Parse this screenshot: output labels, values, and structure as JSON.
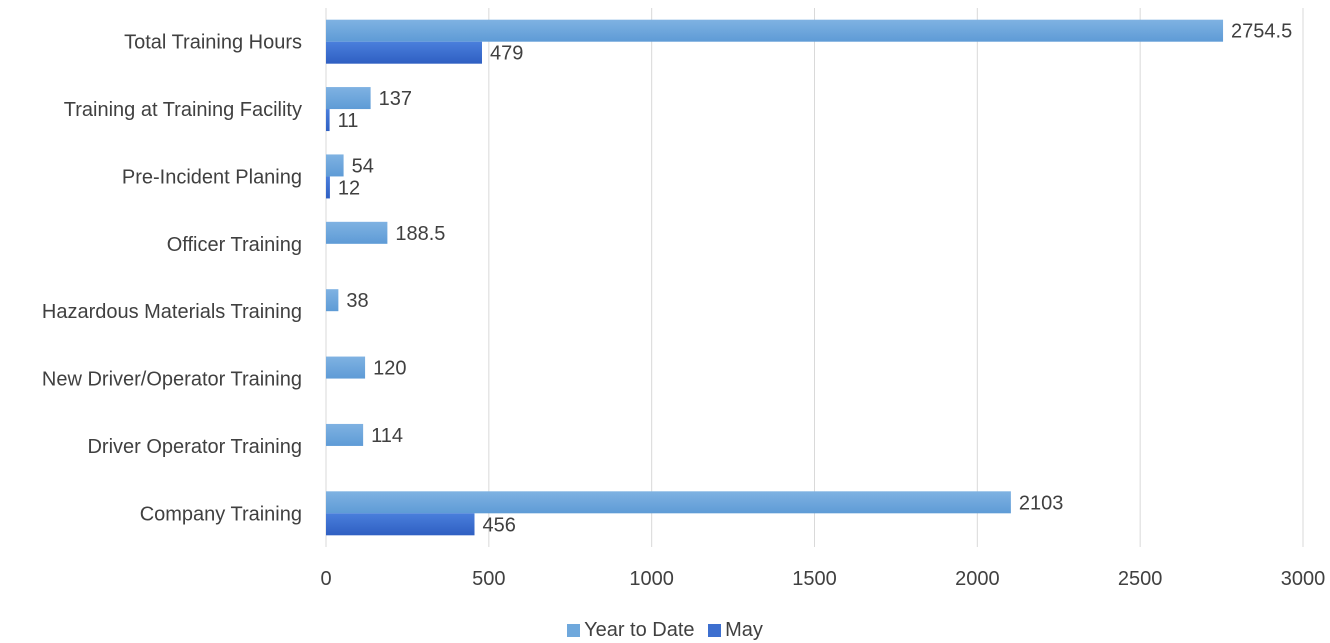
{
  "chart_data": {
    "type": "bar",
    "orientation": "horizontal",
    "categories": [
      "Total Training Hours",
      "Training at Training Facility",
      "Pre-Incident Planing",
      "Officer Training",
      "Hazardous Materials Training",
      "New Driver/Operator Training",
      "Driver Operator Training",
      "Company Training"
    ],
    "series": [
      {
        "name": "Year to Date",
        "color": "#6fa8dc",
        "values": [
          2754.5,
          137,
          54,
          188.5,
          38,
          120,
          114,
          2103
        ],
        "labels": [
          "2754.5",
          "137",
          "54",
          "188.5",
          "38",
          "120",
          "114",
          "2103"
        ]
      },
      {
        "name": "May",
        "color": "#3d6fcf",
        "values": [
          479,
          11,
          12,
          0,
          0,
          0,
          0,
          456
        ],
        "labels": [
          "479",
          "11",
          "12",
          "",
          "",
          "",
          "",
          "456"
        ]
      }
    ],
    "xlim": [
      0,
      3000
    ],
    "xticks": [
      "0",
      "500",
      "1000",
      "1500",
      "2000",
      "2500",
      "3000"
    ],
    "grid": true,
    "legend_position": "bottom",
    "title": "",
    "xlabel": "",
    "ylabel": ""
  }
}
